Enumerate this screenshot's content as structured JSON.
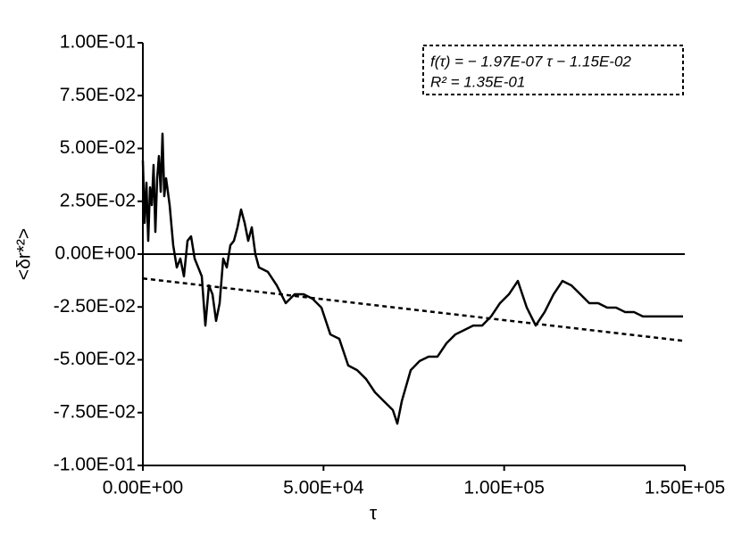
{
  "chart_data": {
    "type": "line",
    "x_label": "τ",
    "y_label": "<δr*²>",
    "annotations": [
      "f(τ) = − 1.97E-07 τ − 1.15E-02",
      "R² = 1.35E-01"
    ],
    "xlim": [
      0,
      150000
    ],
    "ylim": [
      -0.1,
      0.1
    ],
    "xticks": [
      {
        "value": 0,
        "label": "0.00E+00"
      },
      {
        "value": 50000,
        "label": "5.00E+04"
      },
      {
        "value": 100000,
        "label": "1.00E+05"
      },
      {
        "value": 150000,
        "label": "1.50E+05"
      }
    ],
    "yticks": [
      {
        "value": -0.1,
        "label": "-1.00E-01"
      },
      {
        "value": -0.075,
        "label": "-7.50E-02"
      },
      {
        "value": -0.05,
        "label": "-5.00E-02"
      },
      {
        "value": -0.025,
        "label": "-2.50E-02"
      },
      {
        "value": 0,
        "label": "0.00E+00"
      },
      {
        "value": 0.025,
        "label": "2.50E-02"
      },
      {
        "value": 0.05,
        "label": "5.00E-02"
      },
      {
        "value": 0.075,
        "label": "7.50E-02"
      },
      {
        "value": 0.1,
        "label": "1.00E-01"
      }
    ],
    "x": [
      0,
      494,
      988,
      1483,
      1977,
      2471,
      2965,
      3460,
      3954,
      4448,
      4942,
      5437,
      5931,
      6425,
      7414,
      8402,
      9390,
      10379,
      11367,
      12356,
      13344,
      14333,
      15321,
      16310,
      17298,
      18287,
      19275,
      20264,
      21252,
      22241,
      23229,
      24217,
      25206,
      26194,
      27183,
      28171,
      29160,
      30148,
      31137,
      32125,
      34596,
      37068,
      39539,
      42010,
      44481,
      46952,
      49423,
      51895,
      54366,
      56837,
      59308,
      61779,
      64250,
      66722,
      69193,
      70428,
      71664,
      74135,
      76606,
      79077,
      81549,
      84020,
      86491,
      88962,
      91433,
      93904,
      96376,
      98847,
      101318,
      103789,
      106260,
      108731,
      111203,
      113674,
      116145,
      118616,
      121087,
      123558,
      126030,
      128501,
      130972,
      133443,
      135914,
      138386,
      140857,
      143328,
      145799,
      148270,
      149506
    ],
    "series": [
      {
        "color": "#000000",
        "values": [
          0.0443,
          0.0148,
          0.0338,
          0.0063,
          0.0316,
          0.0232,
          0.0422,
          0.0105,
          0.0359,
          0.0464,
          0.0295,
          0.057,
          0.0274,
          0.0359,
          0.0232,
          0.0042,
          -0.0063,
          -0.0021,
          -0.0105,
          0.0063,
          0.0084,
          -0.0021,
          -0.0063,
          -0.0105,
          -0.0338,
          -0.0148,
          -0.019,
          -0.0316,
          -0.0232,
          -0.0021,
          -0.0063,
          0.0042,
          0.0063,
          0.0127,
          0.0211,
          0.0148,
          0.0063,
          0.0127,
          0,
          -0.0063,
          -0.0084,
          -0.0148,
          -0.0232,
          -0.019,
          -0.019,
          -0.0211,
          -0.0253,
          -0.038,
          -0.0401,
          -0.0527,
          -0.0549,
          -0.0591,
          -0.0654,
          -0.0696,
          -0.0738,
          -0.0802,
          -0.0696,
          -0.0549,
          -0.0506,
          -0.0485,
          -0.0485,
          -0.0422,
          -0.038,
          -0.0359,
          -0.0338,
          -0.0338,
          -0.0295,
          -0.0232,
          -0.019,
          -0.0127,
          -0.0253,
          -0.0338,
          -0.0274,
          -0.019,
          -0.0127,
          -0.0148,
          -0.019,
          -0.0232,
          -0.0232,
          -0.0253,
          -0.0253,
          -0.0274,
          -0.0274,
          -0.0295,
          -0.0295,
          -0.0295,
          -0.0295,
          -0.0295,
          -0.0295
        ]
      }
    ],
    "fit": {
      "color": "#000000",
      "x": [
        0,
        150000
      ],
      "values": [
        -0.0115,
        -0.0411
      ]
    }
  }
}
